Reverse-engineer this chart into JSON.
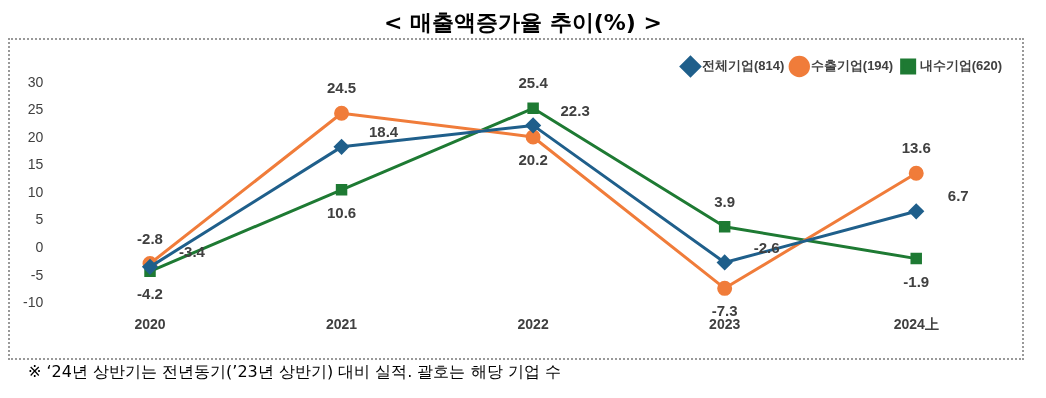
{
  "chart_data": {
    "type": "line",
    "title": "< 매출액증가율 추이(%) >",
    "categories": [
      "2020",
      "2021",
      "2022",
      "2023",
      "2024上"
    ],
    "series": [
      {
        "name": "전체기업(814)",
        "color": "#1f5f8b",
        "marker": "diamond",
        "values": [
          -3.4,
          18.4,
          22.3,
          -2.6,
          6.7
        ]
      },
      {
        "name": "수출기업(194)",
        "color": "#f07c3a",
        "marker": "circle",
        "values": [
          -2.8,
          24.5,
          20.2,
          -7.3,
          13.6
        ]
      },
      {
        "name": "내수기업(620)",
        "color": "#1e7a33",
        "marker": "square",
        "values": [
          -4.2,
          10.6,
          25.4,
          3.9,
          -1.9
        ]
      }
    ],
    "ylim": [
      -10,
      30
    ],
    "yticks": [
      -10,
      -5,
      0,
      5,
      10,
      15,
      20,
      25,
      30
    ],
    "grid": false,
    "legend": "top right",
    "data_labels": true,
    "annotations": [
      "※ ‘24년 상반기는 전년동기(’23년 상반기) 대비 실적. 괄호는 해당 기업 수"
    ]
  }
}
